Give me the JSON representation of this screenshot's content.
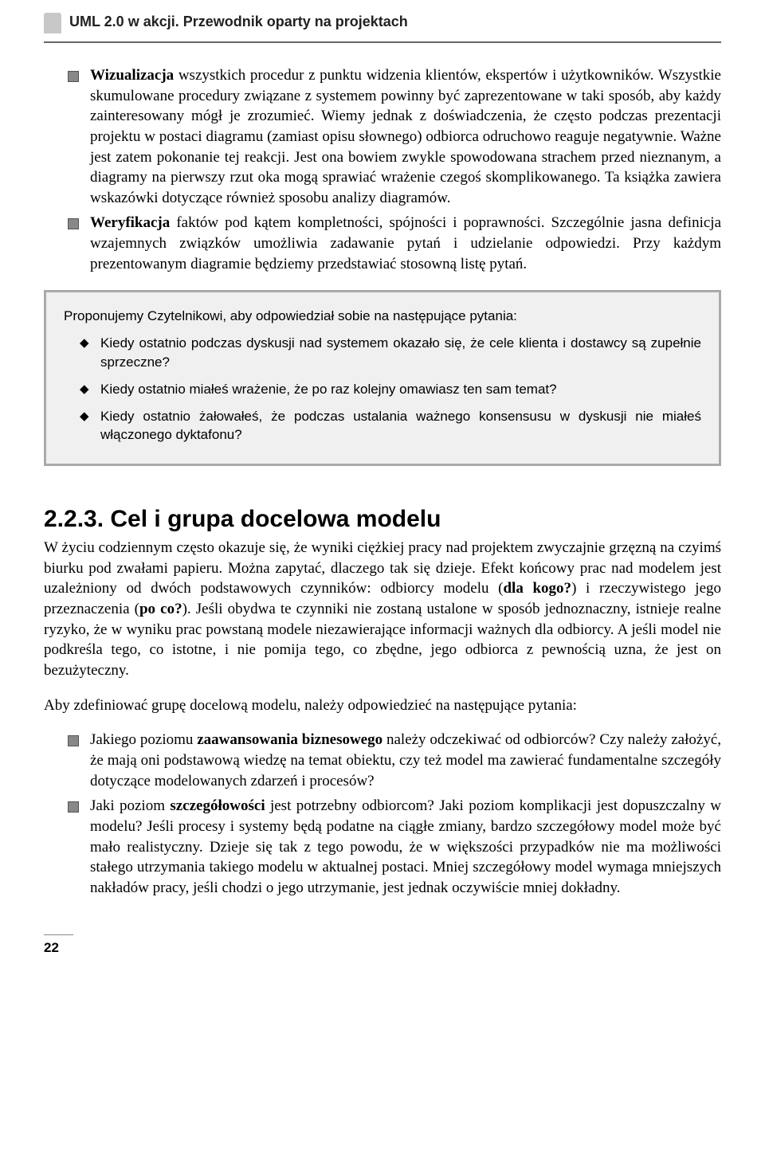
{
  "header": {
    "title": "UML 2.0 w akcji. Przewodnik oparty na projektach"
  },
  "topList": {
    "item1_prefix": "Wizualizacja",
    "item1_rest": " wszystkich procedur z punktu widzenia klientów, ekspertów i użytkowników. Wszystkie skumulowane procedury związane z systemem powinny być zaprezentowane w taki sposób, aby każdy zainteresowany mógł je zrozumieć. Wiemy jednak z doświadczenia, że często podczas prezentacji projektu w postaci diagramu (zamiast opisu słownego) odbiorca odruchowo reaguje negatywnie. Ważne jest zatem pokonanie tej reakcji. Jest ona bowiem zwykle spowodowana strachem przed nieznanym, a diagramy na pierwszy rzut oka mogą sprawiać wrażenie czegoś skomplikowanego. Ta książka zawiera wskazówki dotyczące również sposobu analizy diagramów.",
    "item2_prefix": "Weryfikacja",
    "item2_rest": " faktów pod kątem kompletności, spójności i poprawności. Szczególnie jasna definicja wzajemnych związków umożliwia zadawanie pytań i udzielanie odpowiedzi. Przy każdym prezentowanym diagramie będziemy przedstawiać stosowną listę pytań."
  },
  "callout": {
    "intro": "Proponujemy Czytelnikowi, aby odpowiedział sobie na następujące pytania:",
    "q1": "Kiedy ostatnio podczas dyskusji nad systemem okazało się, że cele klienta i dostawcy są zupełnie sprzeczne?",
    "q2": "Kiedy ostatnio miałeś wrażenie, że po raz kolejny omawiasz ten sam temat?",
    "q3": "Kiedy ostatnio żałowałeś, że podczas ustalania ważnego konsensusu w dyskusji nie miałeś włączonego dyktafonu?"
  },
  "section": {
    "heading": "2.2.3. Cel i grupa docelowa modelu",
    "para1_a": "W życiu codziennym często okazuje się, że wyniki ciężkiej pracy nad projektem zwyczajnie grzęzną na czyimś biurku pod zwałami papieru. Można zapytać, dlaczego tak się dzieje. Efekt końcowy prac nad modelem jest uzależniony od dwóch podstawowych czynników: odbiorcy modelu (",
    "para1_b": "dla kogo?",
    "para1_c": ") i rzeczywistego jego przeznaczenia (",
    "para1_d": "po co?",
    "para1_e": "). Jeśli obydwa te czynniki nie zostaną ustalone w sposób jednoznaczny, istnieje realne ryzyko, że w wyniku prac powstaną modele niezawierające informacji ważnych dla odbiorcy. A jeśli model nie podkreśla tego, co istotne, i nie pomija tego, co zbędne, jego odbiorca z pewnością uzna, że jest on bezużyteczny.",
    "para2": "Aby zdefiniować grupę docelową modelu, należy odpowiedzieć na następujące pytania:"
  },
  "bottomList": {
    "item1_a": "Jakiego poziomu ",
    "item1_b": "zaawansowania biznesowego",
    "item1_c": " należy odczekiwać od odbiorców? Czy należy założyć, że mają oni podstawową wiedzę na temat obiektu, czy też model ma zawierać fundamentalne szczegóły dotyczące modelowanych zdarzeń i procesów?",
    "item2_a": "Jaki poziom ",
    "item2_b": "szczegółowości",
    "item2_c": " jest potrzebny odbiorcom? Jaki poziom komplikacji jest dopuszczalny w modelu? Jeśli procesy i systemy będą podatne na ciągłe zmiany, bardzo szczegółowy model może być mało realistyczny. Dzieje się tak z tego powodu, że w większości przypadków nie ma możliwości stałego utrzymania takiego modelu w aktualnej postaci. Mniej szczegółowy model wymaga mniejszych nakładów pracy, jeśli chodzi o jego utrzymanie, jest jednak oczywiście mniej dokładny."
  },
  "pageNumber": "22"
}
